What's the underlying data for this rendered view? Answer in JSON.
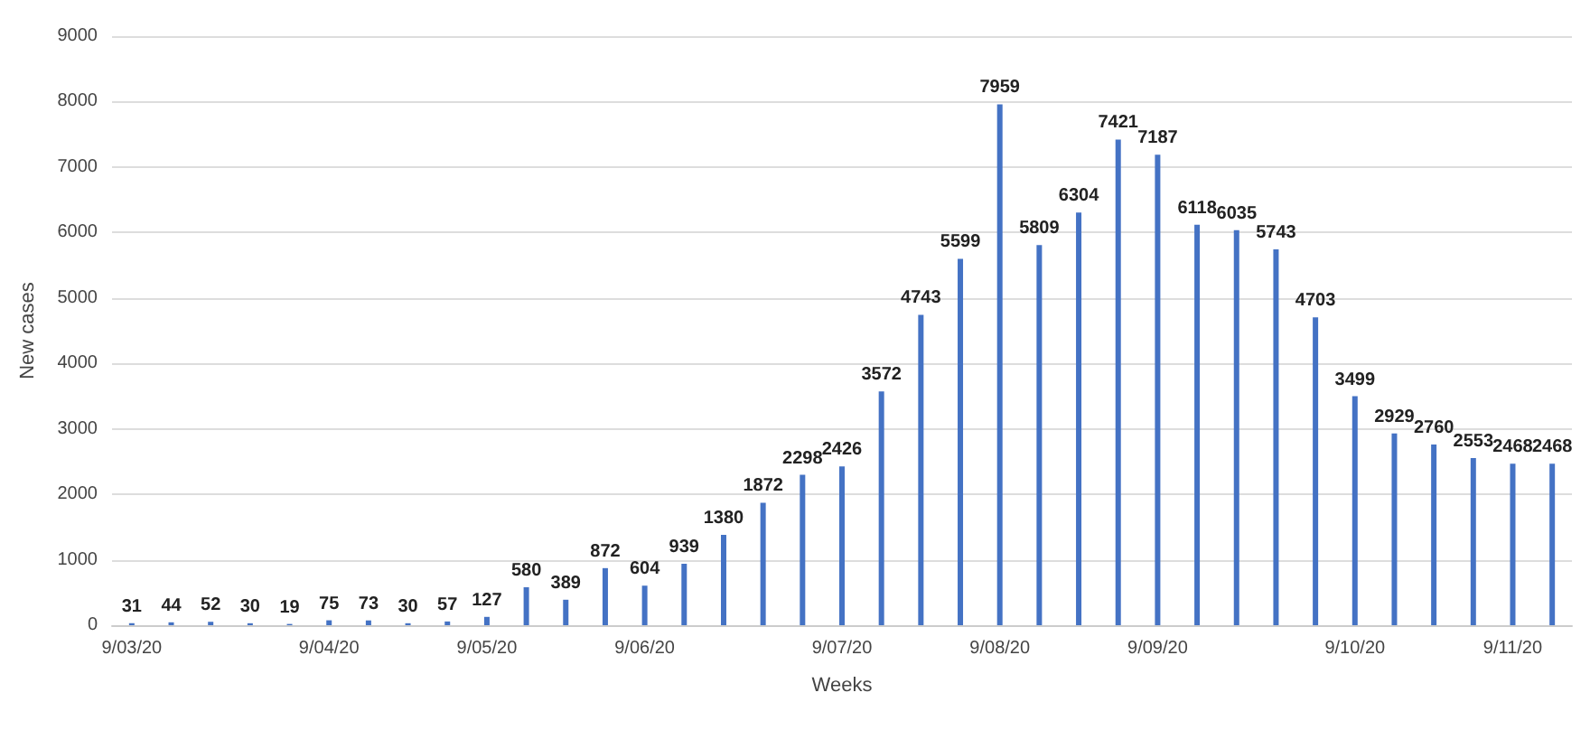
{
  "chart_data": {
    "type": "bar",
    "xlabel": "Weeks",
    "ylabel": "New cases",
    "categories": [
      "9/03/20",
      null,
      null,
      null,
      null,
      "9/04/20",
      null,
      null,
      null,
      "9/05/20",
      null,
      null,
      null,
      "9/06/20",
      null,
      null,
      null,
      null,
      "9/07/20",
      null,
      null,
      null,
      "9/08/20",
      null,
      null,
      null,
      "9/09/20",
      null,
      null,
      null,
      null,
      "9/10/20",
      null,
      null,
      null,
      "9/11/20",
      null
    ],
    "values": [
      31,
      44,
      52,
      30,
      19,
      75,
      73,
      30,
      57,
      127,
      580,
      389,
      872,
      604,
      939,
      1380,
      1872,
      2298,
      2426,
      3572,
      4743,
      5599,
      7959,
      5809,
      6304,
      7421,
      7187,
      6118,
      6035,
      5743,
      4703,
      3499,
      2929,
      2760,
      2553,
      2468,
      2468
    ],
    "color": "#4472c4",
    "ylim": [
      0,
      9000
    ],
    "yticks": [
      0,
      1000,
      2000,
      3000,
      4000,
      5000,
      6000,
      7000,
      8000,
      9000
    ],
    "grid": "y",
    "data_labels": true
  }
}
